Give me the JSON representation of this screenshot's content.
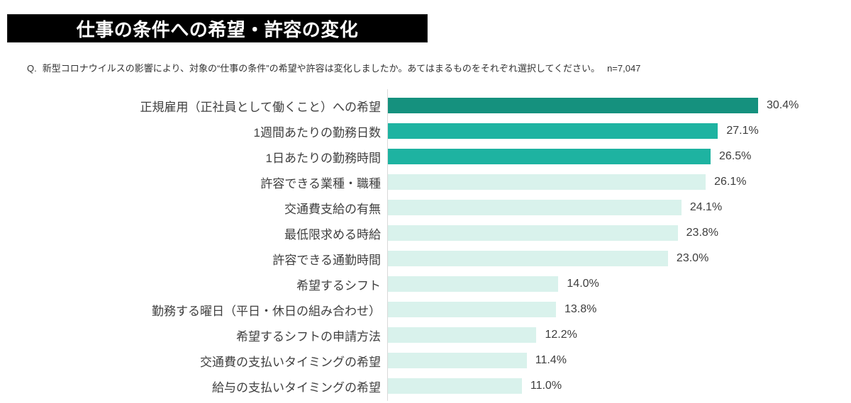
{
  "page_title": "仕事の条件への希望・許容の変化",
  "question": {
    "prefix": "Q.",
    "text": "新型コロナウイルスの影響により、対象の“仕事の条件”の希望や許容は変化しましたか。あてはまるものをそれぞれ選択してください。",
    "sample_size": "n=7,047"
  },
  "chart_data": {
    "type": "bar",
    "orientation": "horizontal",
    "title": "仕事の条件への希望・許容の変化",
    "xlabel": "",
    "ylabel": "",
    "xlim": [
      0,
      32
    ],
    "grid": false,
    "legend": false,
    "categories": [
      "正規雇用（正社員として働くこと）への希望",
      "1週間あたりの勤務日数",
      "1日あたりの勤務時間",
      "許容できる業種・職種",
      "交通費支給の有無",
      "最低限求める時給",
      "許容できる通勤時間",
      "希望するシフト",
      "勤務する曜日（平日・休日の組み合わせ）",
      "希望するシフトの申請方法",
      "交通費の支払いタイミングの希望",
      "給与の支払いタイミングの希望"
    ],
    "values": [
      30.4,
      27.1,
      26.5,
      26.1,
      24.1,
      23.8,
      23.0,
      14.0,
      13.8,
      12.2,
      11.4,
      11.0
    ],
    "value_labels": [
      "30.4%",
      "27.1%",
      "26.5%",
      "26.1%",
      "24.1%",
      "23.8%",
      "23.0%",
      "14.0%",
      "13.8%",
      "12.2%",
      "11.4%",
      "11.0%"
    ],
    "bar_tiers": [
      "dark",
      "medium",
      "medium",
      "light",
      "light",
      "light",
      "light",
      "light",
      "light",
      "light",
      "light",
      "light"
    ],
    "palette": {
      "dark": "#15917e",
      "medium": "#1eb3a1",
      "light": "#d9f2ec"
    },
    "axis_color": "#d9d9d9"
  }
}
